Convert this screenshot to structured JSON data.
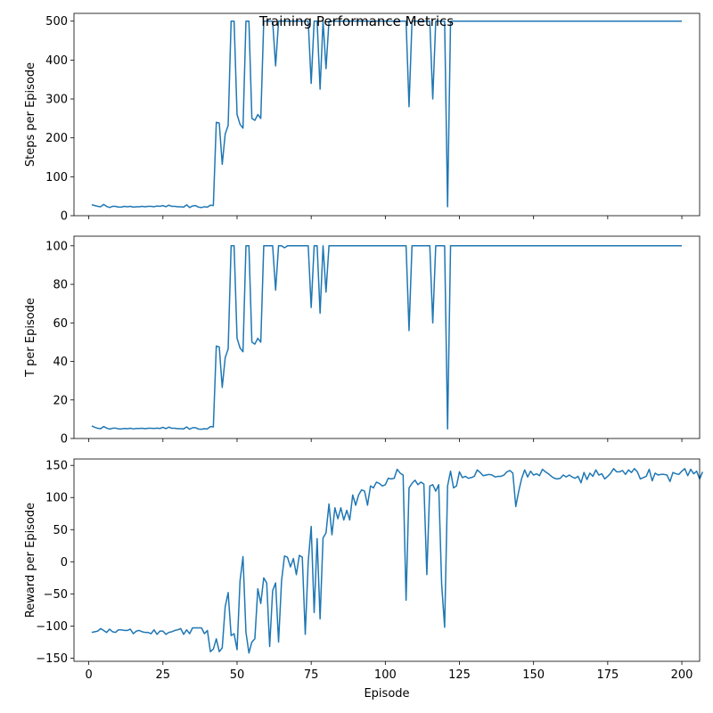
{
  "figure": {
    "title": "Training Performance Metrics",
    "line_color": "#1f77b4"
  },
  "chart_data": [
    {
      "type": "line",
      "ylabel": "Steps per Episode",
      "xlim": [
        -5,
        206
      ],
      "ylim": [
        0,
        520
      ],
      "yticks": [
        0,
        100,
        200,
        300,
        400,
        500
      ],
      "xticks": [
        0,
        25,
        50,
        75,
        100,
        125,
        150,
        175,
        200
      ],
      "show_xtick_labels": false,
      "x_start": 1,
      "values": [
        28,
        26,
        24,
        23,
        29,
        24,
        21,
        24,
        24,
        22,
        22,
        24,
        23,
        24,
        22,
        23,
        23,
        24,
        23,
        24,
        24,
        23,
        25,
        24,
        26,
        23,
        27,
        24,
        24,
        23,
        23,
        22,
        28,
        21,
        25,
        26,
        22,
        21,
        23,
        22,
        27,
        26,
        240,
        238,
        132,
        210,
        232,
        500,
        500,
        260,
        235,
        225,
        500,
        500,
        250,
        245,
        260,
        250,
        500,
        500,
        500,
        500,
        385,
        500,
        500,
        500,
        500,
        500,
        500,
        500,
        500,
        500,
        500,
        500,
        340,
        500,
        500,
        325,
        500,
        378,
        500,
        500,
        500,
        500,
        500,
        500,
        500,
        500,
        500,
        500,
        500,
        500,
        500,
        500,
        500,
        500,
        500,
        500,
        500,
        500,
        500,
        500,
        500,
        500,
        500,
        500,
        500,
        280,
        500,
        500,
        500,
        500,
        500,
        500,
        500,
        300,
        500,
        500,
        500,
        500,
        23,
        500,
        500,
        500,
        500,
        500,
        500,
        500,
        500,
        500,
        500,
        500,
        500,
        500,
        500,
        500,
        500,
        500,
        500,
        500,
        500,
        500,
        500,
        500,
        500,
        500,
        500,
        500,
        500,
        500,
        500,
        500,
        500,
        500,
        500,
        500,
        500,
        500,
        500,
        500,
        500,
        500,
        500,
        500,
        500,
        500,
        500,
        500,
        500,
        500,
        500,
        500,
        500,
        500,
        500,
        500,
        500,
        500,
        500,
        500,
        500,
        500,
        500,
        500,
        500,
        500,
        500,
        500,
        500,
        500,
        500,
        500,
        500,
        500,
        500,
        500,
        500,
        500,
        500,
        500
      ]
    },
    {
      "type": "line",
      "ylabel": "T per Episode",
      "xlim": [
        -5,
        206
      ],
      "ylim": [
        0,
        105
      ],
      "yticks": [
        0,
        20,
        40,
        60,
        80,
        100
      ],
      "xticks": [
        0,
        25,
        50,
        75,
        100,
        125,
        150,
        175,
        200
      ],
      "show_xtick_labels": false,
      "x_start": 1,
      "values": [
        6.5,
        5.8,
        5.3,
        5.1,
        6.2,
        5.4,
        4.9,
        5.3,
        5.4,
        5.0,
        5.0,
        5.2,
        5.1,
        5.3,
        5.0,
        5.2,
        5.2,
        5.3,
        5.1,
        5.3,
        5.3,
        5.2,
        5.4,
        5.2,
        5.8,
        5.1,
        5.9,
        5.3,
        5.3,
        5.1,
        5.1,
        5.0,
        6.0,
        4.8,
        5.6,
        5.6,
        4.9,
        4.8,
        5.1,
        5.0,
        6.2,
        6.0,
        48,
        47.5,
        26.5,
        42,
        46.5,
        100,
        100,
        52,
        47,
        45,
        100,
        100,
        50,
        49,
        52,
        50,
        100,
        100,
        100,
        100,
        77,
        100,
        100,
        99,
        100,
        100,
        100,
        100,
        100,
        100,
        100,
        100,
        68,
        100,
        100,
        65,
        100,
        76,
        100,
        100,
        100,
        100,
        100,
        100,
        100,
        100,
        100,
        100,
        100,
        100,
        100,
        100,
        100,
        100,
        100,
        100,
        100,
        100,
        100,
        100,
        100,
        100,
        100,
        100,
        100,
        56,
        100,
        100,
        100,
        100,
        100,
        100,
        100,
        60,
        100,
        100,
        100,
        100,
        5,
        100,
        100,
        100,
        100,
        100,
        100,
        100,
        100,
        100,
        100,
        100,
        100,
        100,
        100,
        100,
        100,
        100,
        100,
        100,
        100,
        100,
        100,
        100,
        100,
        100,
        100,
        100,
        100,
        100,
        100,
        100,
        100,
        100,
        100,
        100,
        100,
        100,
        100,
        100,
        100,
        100,
        100,
        100,
        100,
        100,
        100,
        100,
        100,
        100,
        100,
        100,
        100,
        100,
        100,
        100,
        100,
        100,
        100,
        100,
        100,
        100,
        100,
        100,
        100,
        100,
        100,
        100,
        100,
        100,
        100,
        100,
        100,
        100,
        100,
        100,
        100,
        100,
        100,
        100
      ]
    },
    {
      "type": "line",
      "ylabel": "Reward per Episode",
      "xlabel": "Episode",
      "xlim": [
        -5,
        206
      ],
      "ylim": [
        -155,
        160
      ],
      "yticks": [
        -150,
        -100,
        -50,
        0,
        50,
        100,
        150
      ],
      "xticks": [
        0,
        25,
        50,
        75,
        100,
        125,
        150,
        175,
        200
      ],
      "show_xtick_labels": true,
      "x_start": 1,
      "values": [
        -110,
        -109,
        -108,
        -104,
        -107,
        -110,
        -105,
        -109,
        -110,
        -106,
        -106,
        -107,
        -107,
        -105,
        -112,
        -108,
        -107,
        -109,
        -110,
        -110,
        -112,
        -106,
        -113,
        -108,
        -108,
        -113,
        -110,
        -109,
        -107,
        -106,
        -104,
        -113,
        -106,
        -112,
        -103,
        -103,
        -103,
        -103,
        -112,
        -107,
        -140,
        -136,
        -120,
        -140,
        -134,
        -70,
        -48,
        -115,
        -112,
        -137,
        -30,
        8,
        -110,
        -142,
        -125,
        -120,
        -42,
        -65,
        -25,
        -33,
        -132,
        -45,
        -33,
        -125,
        -30,
        9,
        7,
        -8,
        5,
        -20,
        10,
        7,
        -113,
        0,
        55,
        -79,
        36,
        -89,
        37,
        45,
        90,
        42,
        84,
        67,
        84,
        65,
        80,
        65,
        104,
        88,
        104,
        112,
        110,
        88,
        118,
        115,
        124,
        122,
        118,
        120,
        130,
        129,
        130,
        144,
        138,
        135,
        -60,
        115,
        122,
        127,
        120,
        124,
        121,
        -20,
        118,
        120,
        110,
        120,
        -35,
        -102,
        118,
        141,
        115,
        118,
        140,
        131,
        133,
        130,
        131,
        133,
        143,
        139,
        134,
        135,
        136,
        135,
        132,
        133,
        133,
        135,
        140,
        142,
        138,
        86,
        110,
        130,
        143,
        132,
        141,
        135,
        137,
        134,
        144,
        140,
        137,
        133,
        130,
        129,
        130,
        135,
        132,
        135,
        132,
        130,
        133,
        123,
        139,
        128,
        138,
        133,
        143,
        135,
        137,
        129,
        133,
        138,
        145,
        140,
        140,
        142,
        136,
        143,
        139,
        145,
        140,
        129,
        131,
        133,
        144,
        126,
        138,
        135,
        136,
        136,
        135,
        125,
        139,
        137,
        136,
        141,
        145,
        134,
        144,
        137,
        141,
        129,
        140
      ]
    }
  ]
}
